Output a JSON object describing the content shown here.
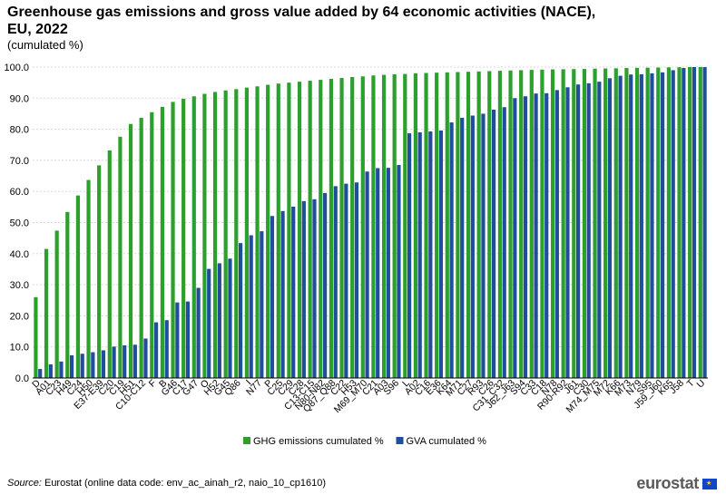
{
  "title_line1": "Greenhouse gas emissions and gross value added by 64 economic activities (NACE),",
  "title_line2": "EU, 2022",
  "subtitle": "(cumulated  %)",
  "source_label": "Source:",
  "source_text": " Eurostat (online data code: env_ac_ainah_r2, naio_10_cp1610)",
  "logo_text": "eurostat",
  "colors": {
    "ghg": "#2ca02c",
    "gva": "#1f4e9c",
    "grid": "#d9d9d9",
    "axis": "#000000"
  },
  "chart_data": {
    "type": "bar",
    "title": "Greenhouse gas emissions and gross value added by 64 economic activities (NACE), EU, 2022",
    "ylabel": "cumulated %",
    "ylim": [
      0,
      100
    ],
    "yticks": [
      "0.0",
      "10.0",
      "20.0",
      "30.0",
      "40.0",
      "50.0",
      "60.0",
      "70.0",
      "80.0",
      "90.0",
      "100.0"
    ],
    "grid": true,
    "legend_position": "bottom",
    "categories": [
      "D",
      "A01",
      "C23",
      "H49",
      "C24",
      "H50",
      "E37-E39",
      "C20",
      "C19",
      "H51",
      "C10-C12",
      "F",
      "B",
      "G46",
      "C17",
      "G47",
      "O",
      "H52",
      "G45",
      "Q86",
      "I",
      "N77",
      "P",
      "C25",
      "C29",
      "C28",
      "C13-C15",
      "N80-N82",
      "Q87_Q88",
      "C22",
      "H53",
      "M69_M70",
      "C21",
      "A03",
      "S96",
      "L",
      "A02",
      "C16",
      "E36",
      "K64",
      "M71",
      "C27",
      "R93",
      "C26",
      "C31_C32",
      "J62_J63",
      "S94",
      "C33",
      "C18",
      "N78",
      "R90-R92",
      "J61",
      "C30",
      "M74_M75",
      "M72",
      "K66",
      "M73",
      "N79",
      "S95",
      "J59_J60",
      "K65",
      "J58",
      "T",
      "U"
    ],
    "tick_labels_shown": [
      "D",
      "A01",
      "C23",
      "H49",
      "C24",
      "H50",
      "E37-E39",
      "C20",
      "C19",
      "H51",
      "C10-C12",
      "F",
      "B",
      "G46",
      "C17",
      "G47",
      "O",
      "H52",
      "G45",
      "Q86",
      "I",
      "N77",
      "P",
      "C25",
      "C29",
      "C28",
      "C13-C15",
      "N80-N82",
      "Q87_Q88",
      "C22",
      "H53",
      "M69_M70",
      "C21",
      "A03",
      "S96",
      "L",
      "A02",
      "C16",
      "E36",
      "K64",
      "M71",
      "C27",
      "R93",
      "C26",
      "C31_C32",
      "J62_J63",
      "S94",
      "C33",
      "C18",
      "N78",
      "R90-R92",
      "J61",
      "C30",
      "M74_M75",
      "M72",
      "K66",
      "M73",
      "N79",
      "S95",
      "J59_J60",
      "K65",
      "J58",
      "T",
      "U"
    ],
    "series": [
      {
        "name": "GHG emissions cumulated %",
        "color_key": "ghg",
        "values": [
          26.0,
          41.5,
          47.4,
          53.4,
          58.7,
          63.7,
          68.4,
          73.2,
          77.6,
          81.7,
          83.7,
          85.5,
          87.2,
          88.8,
          89.8,
          90.6,
          91.4,
          92.0,
          92.5,
          92.9,
          93.4,
          93.8,
          94.3,
          94.7,
          95.0,
          95.3,
          95.6,
          95.9,
          96.2,
          96.5,
          96.8,
          97.0,
          97.3,
          97.5,
          97.7,
          97.8,
          98.0,
          98.1,
          98.2,
          98.3,
          98.4,
          98.5,
          98.6,
          98.7,
          98.8,
          98.9,
          99.0,
          99.1,
          99.2,
          99.25,
          99.3,
          99.35,
          99.4,
          99.5,
          99.55,
          99.6,
          99.7,
          99.75,
          99.8,
          99.85,
          99.9,
          99.95,
          100.0,
          100.0
        ]
      },
      {
        "name": "GVA cumulated %",
        "color_key": "gva",
        "values": [
          2.9,
          4.4,
          5.3,
          7.3,
          7.8,
          8.3,
          8.9,
          10.1,
          10.5,
          10.7,
          12.7,
          17.9,
          18.6,
          24.3,
          24.6,
          29.0,
          35.1,
          36.9,
          38.4,
          43.4,
          45.9,
          47.2,
          52.1,
          53.7,
          55.1,
          56.9,
          57.5,
          59.5,
          61.7,
          62.5,
          62.9,
          66.4,
          67.5,
          67.6,
          68.5,
          78.7,
          79.0,
          79.3,
          79.6,
          82.2,
          83.7,
          84.4,
          85.0,
          86.3,
          87.1,
          90.0,
          90.6,
          91.5,
          91.6,
          92.6,
          93.5,
          94.4,
          94.8,
          95.3,
          96.4,
          97.2,
          97.6,
          97.7,
          98.0,
          98.3,
          99.0,
          99.7,
          100.0,
          100.0
        ]
      }
    ]
  }
}
